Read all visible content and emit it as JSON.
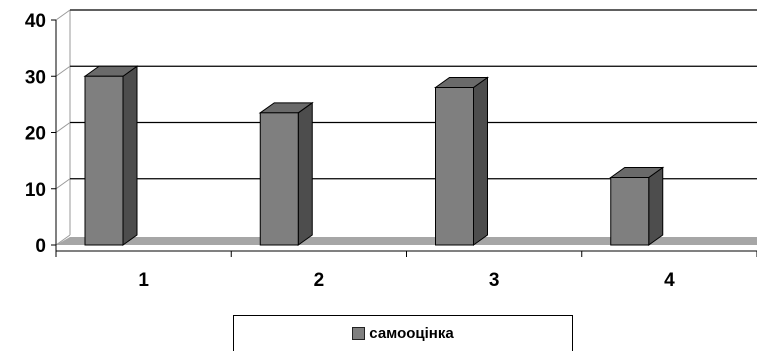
{
  "chart_data": {
    "type": "bar",
    "categories": [
      "1",
      "2",
      "3",
      "4"
    ],
    "series": [
      {
        "name": "самооцінка",
        "values": [
          30,
          23.5,
          28,
          12
        ]
      }
    ],
    "ylim": [
      0,
      40
    ],
    "yticks": [
      "0",
      "10",
      "20",
      "30",
      "40"
    ],
    "grid": true,
    "three_d": true,
    "legend": "bottom",
    "colors": {
      "bar_front": "#7f7f7f",
      "bar_side": "#4d4d4d",
      "bar_top": "#6a6a6a",
      "floor": "#a6a6a6"
    }
  }
}
